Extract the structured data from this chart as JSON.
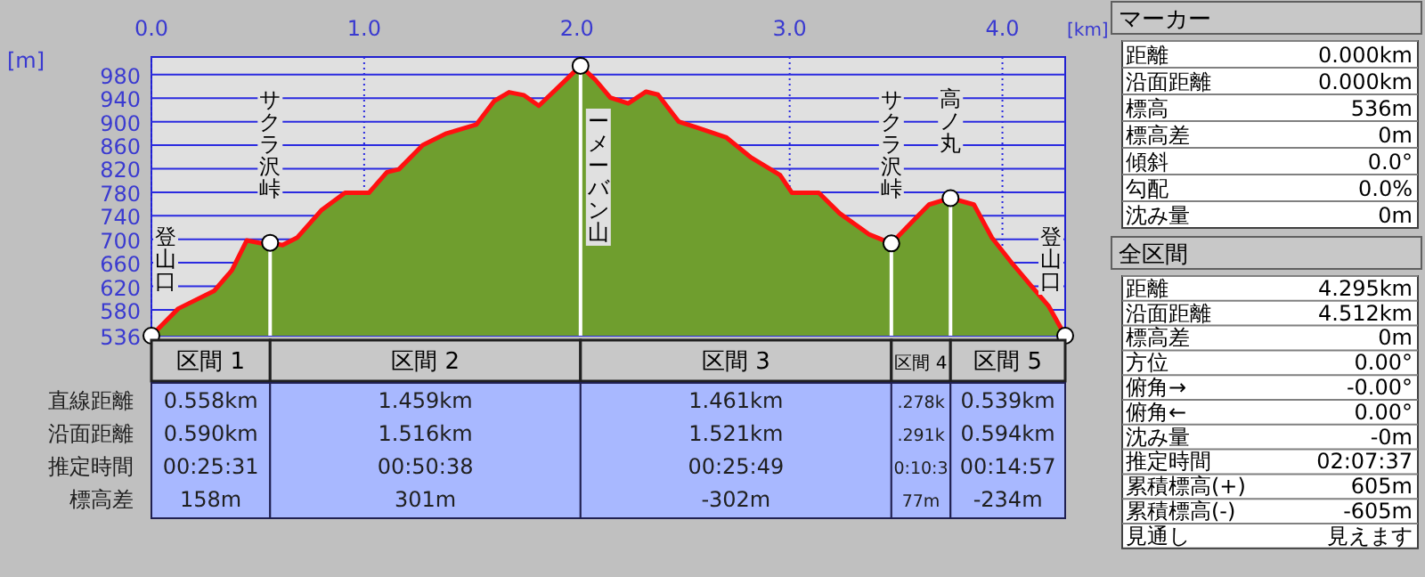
{
  "chart_data": [
    {
      "type": "area",
      "xlabel": "[km]",
      "ylabel": "[m]",
      "x": [
        0,
        0.126,
        0.294,
        0.378,
        0.448,
        0.518,
        0.558,
        0.616,
        0.686,
        0.798,
        0.91,
        1.022,
        1.107,
        1.163,
        1.275,
        1.387,
        1.527,
        1.611,
        1.681,
        1.751,
        1.821,
        1.905,
        2.017,
        2.087,
        2.157,
        2.241,
        2.325,
        2.381,
        2.479,
        2.563,
        2.703,
        2.815,
        2.955,
        3.011,
        3.137,
        3.235,
        3.375,
        3.478,
        3.571,
        3.655,
        3.756,
        3.866,
        3.95,
        4.048,
        4.132,
        4.216,
        4.295
      ],
      "series": [
        {
          "color": "#6f9e2e",
          "values": [
            536,
            582,
            612,
            647,
            698,
            693,
            694,
            690,
            703,
            749,
            779,
            779,
            814,
            819,
            860,
            880,
            895,
            935,
            950,
            945,
            927,
            956,
            995,
            971,
            941,
            931,
            951,
            946,
            900,
            890,
            873,
            840,
            809,
            779,
            779,
            744,
            708,
            693,
            728,
            759,
            770,
            759,
            703,
            658,
            622,
            587,
            536
          ]
        }
      ],
      "xlim": [
        0,
        4.295
      ],
      "ylim": [
        536,
        1010
      ],
      "xticks": [
        {
          "value": 0,
          "label": "0.0"
        },
        {
          "value": 1,
          "label": "1.0"
        },
        {
          "value": 2,
          "label": "2.0"
        },
        {
          "value": 3,
          "label": "3.0"
        },
        {
          "value": 4,
          "label": "4.0"
        }
      ],
      "yticks": [
        536,
        580,
        620,
        660,
        700,
        740,
        780,
        820,
        860,
        900,
        940,
        980
      ],
      "grid": true,
      "ref_lines": [
        {
          "axis": "x",
          "value": 0.558,
          "color": "#ffffff"
        },
        {
          "axis": "x",
          "value": 2.017,
          "color": "#ffffff"
        },
        {
          "axis": "x",
          "value": 3.478,
          "color": "#ffffff"
        },
        {
          "axis": "x",
          "value": 3.756,
          "color": "#ffffff"
        }
      ],
      "annotations": [
        {
          "text": "登山口",
          "x": 0,
          "y": 536
        },
        {
          "text": "サクラ沢峠",
          "x": 0.558,
          "y": 694
        },
        {
          "text": "ーメーバン山",
          "x": 2.017,
          "y": 995
        },
        {
          "text": "サクラ沢峠",
          "x": 3.478,
          "y": 693
        },
        {
          "text": "高ノ丸",
          "x": 3.756,
          "y": 770
        },
        {
          "text": "登山口",
          "x": 4.295,
          "y": 536
        }
      ]
    },
    {
      "type": "other",
      "categories": [
        "区間 1",
        "区間 2",
        "区間 3",
        "区間 4",
        "区間 5"
      ],
      "y_categories": [
        "直線距離",
        "沿面距離",
        "推定時間",
        "標高差"
      ],
      "cell_labels": [
        [
          "0.558km",
          "1.459km",
          "1.461km",
          ".278k",
          "0.539km"
        ],
        [
          "0.590km",
          "1.516km",
          "1.521km",
          ".291k",
          "0.594km"
        ],
        [
          "00:25:31",
          "00:50:38",
          "00:25:49",
          "0:10:3",
          "00:14:57"
        ],
        [
          "158m",
          "301m",
          "-302m",
          "77m",
          "-234m"
        ]
      ]
    },
    {
      "type": "other",
      "title": "マーカー",
      "y_categories": [
        "距離",
        "沿面距離",
        "標高",
        "標高差",
        "傾斜",
        "勾配",
        "沈み量"
      ],
      "cell_labels": [
        [
          "0.000km"
        ],
        [
          "0.000km"
        ],
        [
          "536m"
        ],
        [
          "0m"
        ],
        [
          "0.0°"
        ],
        [
          "0.0%"
        ],
        [
          "0m"
        ]
      ]
    },
    {
      "type": "other",
      "title": "全区間",
      "y_categories": [
        "距離",
        "沿面距離",
        "標高差",
        "方位",
        "俯角→",
        "俯角←",
        "沈み量",
        "推定時間",
        "累積標高(+)",
        "累積標高(-)",
        "見通し"
      ],
      "cell_labels": [
        [
          "4.295km"
        ],
        [
          "4.512km"
        ],
        [
          "0m"
        ],
        [
          "0.00°"
        ],
        [
          "-0.00°"
        ],
        [
          "0.00°"
        ],
        [
          "-0m"
        ],
        [
          "02:07:37"
        ],
        [
          "605m"
        ],
        [
          "-605m"
        ],
        [
          "見えます"
        ]
      ]
    }
  ]
}
